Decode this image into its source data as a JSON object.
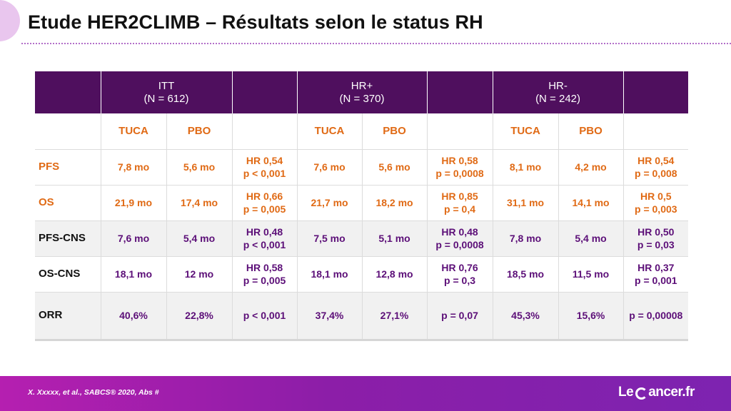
{
  "title": "Etude HER2CLIMB – Résultats selon le status RH",
  "table": {
    "groups": [
      {
        "name": "ITT",
        "n": "(N = 612)"
      },
      {
        "name": "HR+",
        "n": "(N = 370)"
      },
      {
        "name": "HR-",
        "n": "(N = 242)"
      }
    ],
    "arm_labels": [
      "TUCA",
      "PBO",
      "",
      "TUCA",
      "PBO",
      "",
      "TUCA",
      "PBO",
      ""
    ],
    "rows": [
      {
        "label": "PFS",
        "style": "orange white",
        "cells": [
          [
            "7,8 mo"
          ],
          [
            "5,6 mo"
          ],
          [
            "HR 0,54",
            "p < 0,001"
          ],
          [
            "7,6 mo"
          ],
          [
            "5,6 mo"
          ],
          [
            "HR 0,58",
            "p = 0,0008"
          ],
          [
            "8,1 mo"
          ],
          [
            "4,2 mo"
          ],
          [
            "HR 0,54",
            "p = 0,008"
          ]
        ]
      },
      {
        "label": "OS",
        "style": "orange white",
        "cells": [
          [
            "21,9 mo"
          ],
          [
            "17,4 mo"
          ],
          [
            "HR 0,66",
            "p = 0,005"
          ],
          [
            "21,7 mo"
          ],
          [
            "18,2 mo"
          ],
          [
            "HR 0,85",
            "p = 0,4"
          ],
          [
            "31,1 mo"
          ],
          [
            "14,1 mo"
          ],
          [
            "HR 0,5",
            "p = 0,003"
          ]
        ]
      },
      {
        "label": "PFS-CNS",
        "style": "purple grey",
        "cells": [
          [
            "7,6 mo"
          ],
          [
            "5,4 mo"
          ],
          [
            "HR 0,48",
            "p < 0,001"
          ],
          [
            "7,5 mo"
          ],
          [
            "5,1 mo"
          ],
          [
            "HR 0,48",
            "p = 0,0008"
          ],
          [
            "7,8 mo"
          ],
          [
            "5,4 mo"
          ],
          [
            "HR 0,50",
            "p = 0,03"
          ]
        ]
      },
      {
        "label": "OS-CNS",
        "style": "purple white",
        "cells": [
          [
            "18,1 mo"
          ],
          [
            "12 mo"
          ],
          [
            "HR 0,58",
            "p = 0,005"
          ],
          [
            "18,1 mo"
          ],
          [
            "12,8 mo"
          ],
          [
            "HR 0,76",
            "p = 0,3"
          ],
          [
            "18,5 mo"
          ],
          [
            "11,5 mo"
          ],
          [
            "HR 0,37",
            "p = 0,001"
          ]
        ]
      },
      {
        "label": "ORR",
        "style": "purple grey last",
        "cells": [
          [
            "40,6%"
          ],
          [
            "22,8%"
          ],
          [
            "p < 0,001"
          ],
          [
            "37,4%"
          ],
          [
            "27,1%"
          ],
          [
            "p = 0,07"
          ],
          [
            "45,3%"
          ],
          [
            "15,6%"
          ],
          [
            "p = 0,00008"
          ]
        ]
      }
    ]
  },
  "footer": {
    "reference": "X. Xxxxx, et al., SABCS® 2020, Abs #",
    "logo_left": "Le",
    "logo_right": "ancer.fr"
  },
  "colors": {
    "header_bg": "#4f0f5e",
    "orange": "#e06a15",
    "purple_text": "#5c0f78",
    "footer": "#8c1ea8"
  }
}
